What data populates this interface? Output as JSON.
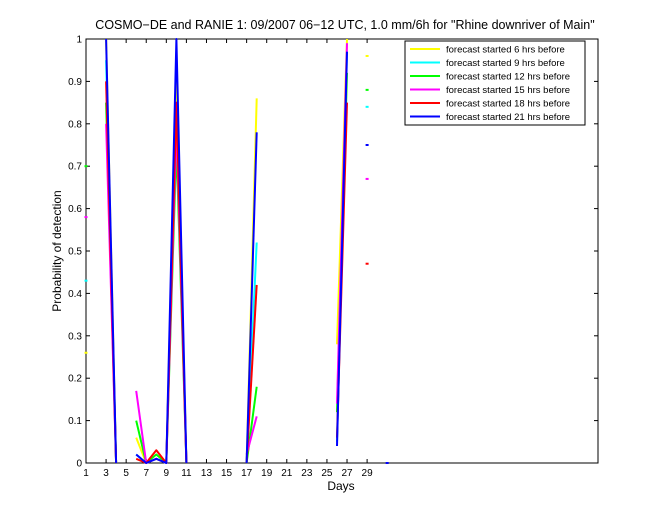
{
  "chart_data": {
    "type": "line",
    "title": "COSMO−DE and RANIE 1: 09/2007 06−12 UTC, 1.0 mm/6h for \"Rhine downriver of Main\"",
    "xlabel": "Days",
    "ylabel": "Probability of detection",
    "xlim": [
      1,
      52
    ],
    "ylim": [
      0,
      1
    ],
    "x_ticks": [
      "1",
      "3",
      "5",
      "7",
      "9",
      "11",
      "13",
      "15",
      "17",
      "19",
      "21",
      "23",
      "25",
      "27",
      "29"
    ],
    "y_ticks": [
      "0",
      "0.1",
      "0.2",
      "0.3",
      "0.4",
      "0.5",
      "0.6",
      "0.7",
      "0.8",
      "0.9",
      "1"
    ],
    "grid": false,
    "legend_position": "top-right",
    "series": [
      {
        "name": "forecast started 6 hrs before",
        "color": "#ffff00",
        "values": [
          [
            1,
            0.26
          ],
          [
            3,
            1.0
          ],
          [
            4,
            0.0
          ],
          [
            6,
            0.06
          ],
          [
            7,
            0.0
          ],
          [
            8,
            0.01
          ],
          [
            9,
            0.0
          ],
          [
            10,
            0.92
          ],
          [
            11,
            0.0
          ],
          [
            17,
            0.0
          ],
          [
            18,
            0.86
          ],
          [
            26,
            0.28
          ],
          [
            27,
            1.0
          ],
          [
            29,
            0.96
          ]
        ]
      },
      {
        "name": "forecast started 9 hrs before",
        "color": "#00ffff",
        "values": [
          [
            1,
            0.43
          ],
          [
            3,
            0.95
          ],
          [
            4,
            0.0
          ],
          [
            6,
            0.02
          ],
          [
            7,
            0.0
          ],
          [
            8,
            0.01
          ],
          [
            9,
            0.0
          ],
          [
            10,
            0.84
          ],
          [
            11,
            0.0
          ],
          [
            17,
            0.0
          ],
          [
            18,
            0.52
          ],
          [
            26,
            0.05
          ],
          [
            27,
            0.97
          ],
          [
            29,
            0.84
          ]
        ]
      },
      {
        "name": "forecast started 12 hrs before",
        "color": "#00ff00",
        "values": [
          [
            1,
            0.7
          ],
          [
            3,
            0.85
          ],
          [
            4,
            0.0
          ],
          [
            6,
            0.1
          ],
          [
            7,
            0.0
          ],
          [
            8,
            0.02
          ],
          [
            9,
            0.0
          ],
          [
            10,
            0.75
          ],
          [
            11,
            0.0
          ],
          [
            17,
            0.0
          ],
          [
            18,
            0.18
          ],
          [
            26,
            0.12
          ],
          [
            27,
            0.92
          ],
          [
            29,
            0.88
          ]
        ]
      },
      {
        "name": "forecast started 15 hrs before",
        "color": "#ff00ff",
        "values": [
          [
            1,
            0.58
          ],
          [
            3,
            0.8
          ],
          [
            4,
            0.0
          ],
          [
            6,
            0.17
          ],
          [
            7,
            0.0
          ],
          [
            8,
            0.01
          ],
          [
            9,
            0.0
          ],
          [
            10,
            0.8
          ],
          [
            11,
            0.0
          ],
          [
            17,
            0.02
          ],
          [
            18,
            0.11
          ],
          [
            26,
            0.14
          ],
          [
            27,
            0.99
          ],
          [
            29,
            0.67
          ]
        ]
      },
      {
        "name": "forecast started 18 hrs before",
        "color": "#ff0000",
        "values": [
          [
            3,
            0.9
          ],
          [
            4,
            0.0
          ],
          [
            6,
            0.01
          ],
          [
            7,
            0.0
          ],
          [
            8,
            0.03
          ],
          [
            9,
            0.0
          ],
          [
            10,
            0.85
          ],
          [
            11,
            0.0
          ],
          [
            17,
            0.0
          ],
          [
            18,
            0.42
          ],
          [
            26,
            0.06
          ],
          [
            27,
            0.85
          ],
          [
            29,
            0.47
          ]
        ]
      },
      {
        "name": "forecast started 21 hrs before",
        "color": "#0000ff",
        "values": [
          [
            3,
            1.0
          ],
          [
            4,
            0.0
          ],
          [
            6,
            0.02
          ],
          [
            7,
            0.0
          ],
          [
            8,
            0.01
          ],
          [
            9,
            0.0
          ],
          [
            10,
            1.0
          ],
          [
            11,
            0.0
          ],
          [
            17,
            0.0
          ],
          [
            18,
            0.78
          ],
          [
            26,
            0.04
          ],
          [
            27,
            0.97
          ],
          [
            29,
            0.75
          ],
          [
            31,
            0.0
          ]
        ]
      }
    ]
  }
}
